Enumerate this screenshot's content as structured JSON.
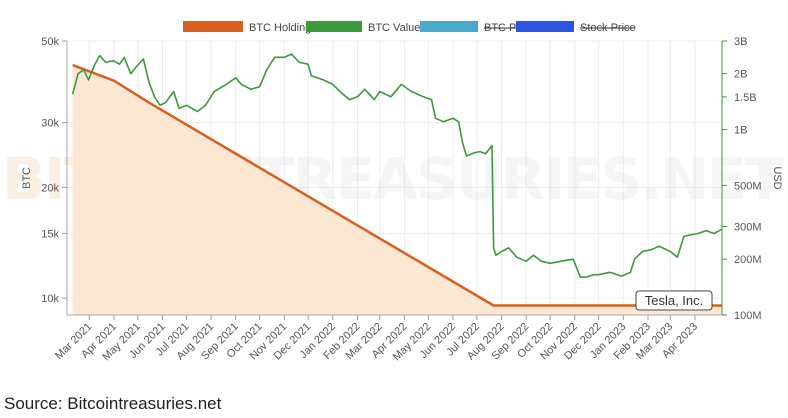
{
  "chart_data": {
    "type": "line",
    "title": "",
    "watermark": {
      "part1": "BITCOIN",
      "part2": "TREASURIES",
      "part3": ".NET"
    },
    "legend": [
      {
        "label": "BTC Holdings",
        "color": "#d95f1e",
        "hidden": false
      },
      {
        "label": "BTC Value",
        "color": "#3a9a3a",
        "hidden": false
      },
      {
        "label": "BTC Price",
        "color": "#4aa8c8",
        "hidden": true
      },
      {
        "label": "Stock Price",
        "color": "#2d56e0",
        "hidden": true
      }
    ],
    "left_axis": {
      "label": "BTC",
      "scale": "log",
      "range": [
        9000,
        50000
      ],
      "ticks": [
        {
          "v": 50000,
          "t": "50k"
        },
        {
          "v": 30000,
          "t": "30k"
        },
        {
          "v": 20000,
          "t": "20k"
        },
        {
          "v": 15000,
          "t": "15k"
        },
        {
          "v": 10000,
          "t": "10k"
        }
      ]
    },
    "right_axis": {
      "label": "USD",
      "scale": "log",
      "range": [
        100000000,
        3000000000
      ],
      "ticks": [
        {
          "v": 3000000000,
          "t": "3B"
        },
        {
          "v": 2000000000,
          "t": "2B"
        },
        {
          "v": 1500000000,
          "t": "1.5B"
        },
        {
          "v": 1000000000,
          "t": "1B"
        },
        {
          "v": 500000000,
          "t": "500M"
        },
        {
          "v": 300000000,
          "t": "300M"
        },
        {
          "v": 200000000,
          "t": "200M"
        },
        {
          "v": 100000000,
          "t": "100M"
        }
      ]
    },
    "x_axis": {
      "range": [
        "2021-02-01",
        "2023-05-05"
      ],
      "ticks": [
        {
          "d": "2021-03-01",
          "t": "Mar 2021"
        },
        {
          "d": "2021-04-01",
          "t": "Apr 2021"
        },
        {
          "d": "2021-05-01",
          "t": "May 2021"
        },
        {
          "d": "2021-06-01",
          "t": "Jun 2021"
        },
        {
          "d": "2021-07-01",
          "t": "Jul 2021"
        },
        {
          "d": "2021-08-01",
          "t": "Aug 2021"
        },
        {
          "d": "2021-09-01",
          "t": "Sep 2021"
        },
        {
          "d": "2021-10-01",
          "t": "Oct 2021"
        },
        {
          "d": "2021-11-01",
          "t": "Nov 2021"
        },
        {
          "d": "2021-12-01",
          "t": "Dec 2021"
        },
        {
          "d": "2022-01-01",
          "t": "Jan 2022"
        },
        {
          "d": "2022-02-01",
          "t": "Feb 2022"
        },
        {
          "d": "2022-03-01",
          "t": "Mar 2022"
        },
        {
          "d": "2022-04-01",
          "t": "Apr 2022"
        },
        {
          "d": "2022-05-01",
          "t": "May 2022"
        },
        {
          "d": "2022-06-01",
          "t": "Jun 2022"
        },
        {
          "d": "2022-07-01",
          "t": "Jul 2022"
        },
        {
          "d": "2022-08-01",
          "t": "Aug 2022"
        },
        {
          "d": "2022-09-01",
          "t": "Sep 2022"
        },
        {
          "d": "2022-10-01",
          "t": "Oct 2022"
        },
        {
          "d": "2022-11-01",
          "t": "Nov 2022"
        },
        {
          "d": "2022-12-01",
          "t": "Dec 2022"
        },
        {
          "d": "2023-01-01",
          "t": "Jan 2023"
        },
        {
          "d": "2023-02-01",
          "t": "Feb 2023"
        },
        {
          "d": "2023-03-01",
          "t": "Mar 2023"
        },
        {
          "d": "2023-04-01",
          "t": "Apr 2023"
        }
      ]
    },
    "series": [
      {
        "name": "BTC Holdings",
        "axis": "left",
        "color": "#d95f1e",
        "fill": "#fbe7d2",
        "points": [
          [
            "2021-02-08",
            43000
          ],
          [
            "2021-04-01",
            39000
          ],
          [
            "2021-05-15",
            34000
          ],
          [
            "2022-07-22",
            9550
          ],
          [
            "2023-05-05",
            9550
          ]
        ]
      },
      {
        "name": "BTC Value",
        "axis": "right",
        "color": "#3a9a3a",
        "points": [
          [
            "2021-02-08",
            1550000000.0
          ],
          [
            "2021-02-15",
            2000000000.0
          ],
          [
            "2021-02-22",
            2100000000.0
          ],
          [
            "2021-02-28",
            1850000000.0
          ],
          [
            "2021-03-08",
            2250000000.0
          ],
          [
            "2021-03-14",
            2500000000.0
          ],
          [
            "2021-03-22",
            2300000000.0
          ],
          [
            "2021-03-31",
            2350000000.0
          ],
          [
            "2021-04-08",
            2250000000.0
          ],
          [
            "2021-04-14",
            2450000000.0
          ],
          [
            "2021-04-22",
            2000000000.0
          ],
          [
            "2021-04-30",
            2200000000.0
          ],
          [
            "2021-05-08",
            2400000000.0
          ],
          [
            "2021-05-15",
            1800000000.0
          ],
          [
            "2021-05-22",
            1500000000.0
          ],
          [
            "2021-05-29",
            1350000000.0
          ],
          [
            "2021-06-05",
            1400000000.0
          ],
          [
            "2021-06-15",
            1600000000.0
          ],
          [
            "2021-06-22",
            1300000000.0
          ],
          [
            "2021-07-01",
            1350000000.0
          ],
          [
            "2021-07-15",
            1250000000.0
          ],
          [
            "2021-07-25",
            1350000000.0
          ],
          [
            "2021-08-05",
            1600000000.0
          ],
          [
            "2021-08-20",
            1750000000.0
          ],
          [
            "2021-09-01",
            1900000000.0
          ],
          [
            "2021-09-08",
            1750000000.0
          ],
          [
            "2021-09-20",
            1650000000.0
          ],
          [
            "2021-10-01",
            1700000000.0
          ],
          [
            "2021-10-10",
            2100000000.0
          ],
          [
            "2021-10-20",
            2450000000.0
          ],
          [
            "2021-11-01",
            2450000000.0
          ],
          [
            "2021-11-10",
            2550000000.0
          ],
          [
            "2021-11-20",
            2300000000.0
          ],
          [
            "2021-12-01",
            2250000000.0
          ],
          [
            "2021-12-05",
            1950000000.0
          ],
          [
            "2021-12-20",
            1850000000.0
          ],
          [
            "2022-01-01",
            1750000000.0
          ],
          [
            "2022-01-10",
            1600000000.0
          ],
          [
            "2022-01-22",
            1450000000.0
          ],
          [
            "2022-02-01",
            1500000000.0
          ],
          [
            "2022-02-10",
            1650000000.0
          ],
          [
            "2022-02-22",
            1450000000.0
          ],
          [
            "2022-03-01",
            1600000000.0
          ],
          [
            "2022-03-15",
            1500000000.0
          ],
          [
            "2022-03-28",
            1750000000.0
          ],
          [
            "2022-04-10",
            1600000000.0
          ],
          [
            "2022-04-25",
            1500000000.0
          ],
          [
            "2022-05-05",
            1450000000.0
          ],
          [
            "2022-05-10",
            1150000000.0
          ],
          [
            "2022-05-20",
            1100000000.0
          ],
          [
            "2022-06-01",
            1150000000.0
          ],
          [
            "2022-06-08",
            1100000000.0
          ],
          [
            "2022-06-13",
            850000000.0
          ],
          [
            "2022-06-18",
            720000000.0
          ],
          [
            "2022-06-28",
            750000000.0
          ],
          [
            "2022-07-05",
            760000000.0
          ],
          [
            "2022-07-12",
            740000000.0
          ],
          [
            "2022-07-20",
            820000000.0
          ],
          [
            "2022-07-22",
            230000000.0
          ],
          [
            "2022-07-25",
            210000000.0
          ],
          [
            "2022-08-01",
            220000000.0
          ],
          [
            "2022-08-10",
            230000000.0
          ],
          [
            "2022-08-20",
            205000000.0
          ],
          [
            "2022-09-01",
            195000000.0
          ],
          [
            "2022-09-10",
            210000000.0
          ],
          [
            "2022-09-20",
            195000000.0
          ],
          [
            "2022-10-01",
            190000000.0
          ],
          [
            "2022-10-15",
            195000000.0
          ],
          [
            "2022-10-30",
            200000000.0
          ],
          [
            "2022-11-08",
            160000000.0
          ],
          [
            "2022-11-15",
            160000000.0
          ],
          [
            "2022-11-25",
            165000000.0
          ],
          [
            "2022-12-01",
            165000000.0
          ],
          [
            "2022-12-15",
            170000000.0
          ],
          [
            "2022-12-30",
            162000000.0
          ],
          [
            "2023-01-10",
            170000000.0
          ],
          [
            "2023-01-15",
            200000000.0
          ],
          [
            "2023-01-25",
            220000000.0
          ],
          [
            "2023-02-05",
            225000000.0
          ],
          [
            "2023-02-15",
            235000000.0
          ],
          [
            "2023-03-01",
            220000000.0
          ],
          [
            "2023-03-10",
            205000000.0
          ],
          [
            "2023-03-18",
            265000000.0
          ],
          [
            "2023-03-25",
            270000000.0
          ],
          [
            "2023-04-05",
            275000000.0
          ],
          [
            "2023-04-15",
            285000000.0
          ],
          [
            "2023-04-25",
            275000000.0
          ],
          [
            "2023-05-05",
            290000000.0
          ]
        ]
      }
    ],
    "annotation": {
      "label": "Tesla, Inc."
    }
  },
  "source": "Source: Bitcointreasuries.net"
}
